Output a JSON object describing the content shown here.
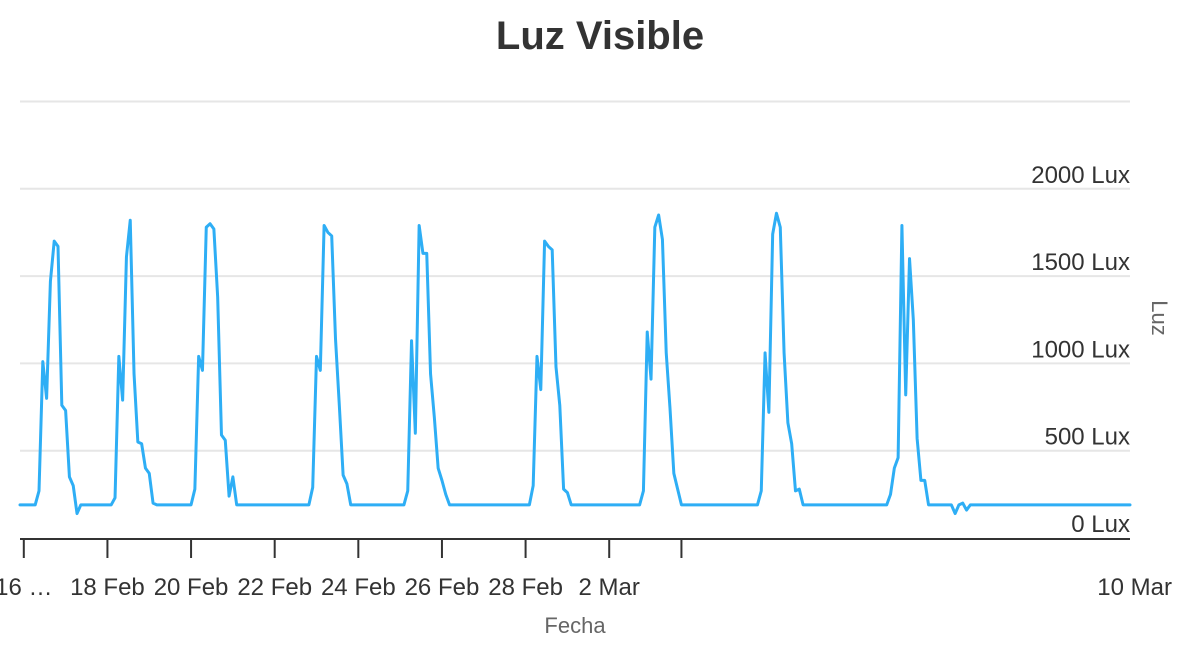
{
  "chart_data": {
    "type": "line",
    "title": "Luz Visible",
    "xlabel": "Fecha",
    "ylabel": "Luz",
    "y_unit_suffix": " Lux",
    "ylim": [
      0,
      2500
    ],
    "y_ticks": [
      0,
      500,
      1000,
      1500,
      2000
    ],
    "y_tick_labels": [
      "0 Lux",
      "500 Lux",
      "1000 Lux",
      "1500 Lux",
      "2000 Lux"
    ],
    "y_axis_side": "right",
    "x_axis_type": "category",
    "x_ticks": [
      {
        "index": 1,
        "label": "16 …"
      },
      {
        "index": 23,
        "label": "18 Feb"
      },
      {
        "index": 45,
        "label": "20 Feb"
      },
      {
        "index": 67,
        "label": "22 Feb"
      },
      {
        "index": 89,
        "label": "24 Feb"
      },
      {
        "index": 111,
        "label": "26 Feb"
      },
      {
        "index": 133,
        "label": "28 Feb"
      },
      {
        "index": 155,
        "label": "2 Mar"
      },
      {
        "index": 174,
        "label": "10 Mar"
      }
    ],
    "grid": true,
    "legend": "none",
    "color": "#2eaef5",
    "series": [
      {
        "values": [
          190,
          190,
          190,
          190,
          190,
          270,
          1010,
          800,
          1470,
          1700,
          1670,
          760,
          730,
          350,
          300,
          140,
          190,
          190,
          190,
          190,
          190,
          190,
          190,
          190,
          190,
          230,
          1040,
          790,
          1610,
          1820,
          940,
          550,
          540,
          400,
          370,
          200,
          190,
          190,
          190,
          190,
          190,
          190,
          190,
          190,
          190,
          190,
          280,
          1040,
          960,
          1780,
          1800,
          1770,
          1380,
          590,
          560,
          240,
          350,
          190,
          190,
          190,
          190,
          190,
          190,
          190,
          190,
          190,
          190,
          190,
          190,
          190,
          190,
          190,
          190,
          190,
          190,
          190,
          190,
          290,
          1040,
          960,
          1790,
          1750,
          1730,
          1140,
          760,
          360,
          310,
          190,
          190,
          190,
          190,
          190,
          190,
          190,
          190,
          190,
          190,
          190,
          190,
          190,
          190,
          190,
          270,
          1130,
          600,
          1790,
          1630,
          1630,
          940,
          690,
          400,
          330,
          250,
          190,
          190,
          190,
          190,
          190,
          190,
          190,
          190,
          190,
          190,
          190,
          190,
          190,
          190,
          190,
          190,
          190,
          190,
          190,
          190,
          190,
          190,
          300,
          1040,
          850,
          1700,
          1670,
          1650,
          980,
          760,
          280,
          260,
          190,
          190,
          190,
          190,
          190,
          190,
          190,
          190,
          190,
          190,
          190,
          190,
          190,
          190,
          190,
          190,
          190,
          190,
          190,
          270,
          1180,
          910,
          1780,
          1850,
          1710,
          1060,
          740,
          370,
          280,
          190,
          190,
          190,
          190,
          190,
          190,
          190,
          190,
          190,
          190,
          190,
          190,
          190,
          190,
          190,
          190,
          190,
          190,
          190,
          190,
          190,
          270,
          1060,
          720,
          1740,
          1860,
          1780,
          1060,
          660,
          540,
          270,
          280,
          190,
          190,
          190,
          190,
          190,
          190,
          190,
          190,
          190,
          190,
          190,
          190,
          190,
          190,
          190,
          190,
          190,
          190,
          190,
          190,
          190,
          190,
          190,
          250,
          400,
          460,
          1790,
          820,
          1600,
          1250,
          570,
          330,
          330,
          190,
          190,
          190,
          190,
          190,
          190,
          190,
          140,
          190,
          200,
          160,
          190,
          190,
          190,
          190,
          190,
          190,
          190,
          190,
          190,
          190,
          190,
          190,
          190,
          190,
          190,
          190,
          190,
          190,
          190,
          190,
          190,
          190,
          190,
          190,
          190,
          190,
          190,
          190,
          190,
          190,
          190,
          190,
          190,
          190,
          190,
          190,
          190,
          190,
          190,
          190,
          190,
          190,
          190
        ]
      }
    ]
  }
}
